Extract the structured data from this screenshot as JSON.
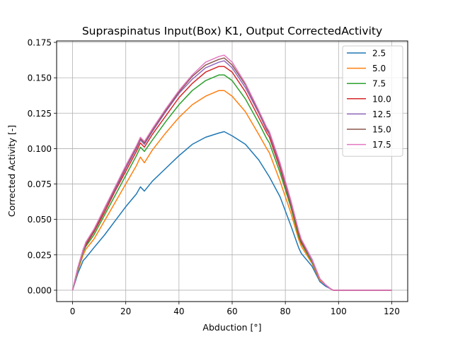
{
  "chart_data": {
    "type": "line",
    "title": "Supraspinatus Input(Box) K1, Output CorrectedActivity",
    "xlabel": "Abduction [°]",
    "ylabel": "Corrected Activity [-]",
    "xlim": [
      -6,
      126
    ],
    "ylim": [
      -0.008,
      0.176
    ],
    "xticks": [
      0,
      20,
      40,
      60,
      80,
      100,
      120
    ],
    "yticks": [
      0.0,
      0.025,
      0.05,
      0.075,
      0.1,
      0.125,
      0.15,
      0.175
    ],
    "ytick_labels": [
      "0.000",
      "0.025",
      "0.050",
      "0.075",
      "0.100",
      "0.125",
      "0.150",
      "0.175"
    ],
    "xtick_labels": [
      "0",
      "20",
      "40",
      "60",
      "80",
      "100",
      "120"
    ],
    "grid": true,
    "legend_position": "top-right",
    "x": [
      0,
      2,
      4,
      5,
      8,
      12,
      16,
      20,
      24,
      25.5,
      27,
      30,
      35,
      40,
      45,
      50,
      55,
      57,
      60,
      65,
      70,
      73,
      74,
      78,
      82,
      85,
      86,
      90,
      93,
      95,
      97,
      98,
      100,
      105,
      110,
      115,
      120
    ],
    "series": [
      {
        "name": "2.5",
        "color": "#1f77b4",
        "values": [
          0.0,
          0.012,
          0.021,
          0.023,
          0.03,
          0.039,
          0.049,
          0.059,
          0.068,
          0.073,
          0.07,
          0.077,
          0.086,
          0.095,
          0.103,
          0.108,
          0.111,
          0.112,
          0.109,
          0.103,
          0.092,
          0.083,
          0.08,
          0.066,
          0.046,
          0.03,
          0.026,
          0.017,
          0.006,
          0.003,
          0.001,
          0.0,
          0.0,
          0.0,
          0.0,
          0.0,
          0.0
        ]
      },
      {
        "name": "5.0",
        "color": "#ff7f0e",
        "values": [
          0.0,
          0.014,
          0.025,
          0.029,
          0.036,
          0.049,
          0.062,
          0.075,
          0.088,
          0.094,
          0.09,
          0.099,
          0.111,
          0.122,
          0.131,
          0.137,
          0.141,
          0.141,
          0.137,
          0.126,
          0.11,
          0.1,
          0.097,
          0.077,
          0.055,
          0.036,
          0.031,
          0.019,
          0.007,
          0.004,
          0.001,
          0.0,
          0.0,
          0.0,
          0.0,
          0.0,
          0.0
        ]
      },
      {
        "name": "7.5",
        "color": "#2ca02c",
        "values": [
          0.0,
          0.015,
          0.027,
          0.031,
          0.039,
          0.053,
          0.067,
          0.081,
          0.095,
          0.101,
          0.098,
          0.106,
          0.119,
          0.131,
          0.141,
          0.148,
          0.152,
          0.152,
          0.148,
          0.135,
          0.118,
          0.107,
          0.104,
          0.083,
          0.059,
          0.038,
          0.033,
          0.02,
          0.008,
          0.004,
          0.001,
          0.0,
          0.0,
          0.0,
          0.0,
          0.0,
          0.0
        ]
      },
      {
        "name": "10.0",
        "color": "#d62728",
        "values": [
          0.0,
          0.016,
          0.028,
          0.032,
          0.041,
          0.055,
          0.07,
          0.084,
          0.098,
          0.104,
          0.101,
          0.11,
          0.123,
          0.136,
          0.146,
          0.154,
          0.158,
          0.158,
          0.154,
          0.14,
          0.122,
          0.111,
          0.108,
          0.086,
          0.061,
          0.04,
          0.034,
          0.021,
          0.008,
          0.004,
          0.001,
          0.0,
          0.0,
          0.0,
          0.0,
          0.0,
          0.0
        ]
      },
      {
        "name": "12.5",
        "color": "#9467bd",
        "values": [
          0.0,
          0.016,
          0.028,
          0.033,
          0.042,
          0.057,
          0.071,
          0.086,
          0.1,
          0.106,
          0.103,
          0.112,
          0.126,
          0.139,
          0.149,
          0.157,
          0.161,
          0.162,
          0.157,
          0.143,
          0.125,
          0.113,
          0.11,
          0.088,
          0.062,
          0.041,
          0.035,
          0.021,
          0.008,
          0.004,
          0.001,
          0.0,
          0.0,
          0.0,
          0.0,
          0.0,
          0.0
        ]
      },
      {
        "name": "15.0",
        "color": "#8c564b",
        "values": [
          0.0,
          0.016,
          0.029,
          0.033,
          0.042,
          0.057,
          0.072,
          0.087,
          0.101,
          0.107,
          0.104,
          0.113,
          0.127,
          0.14,
          0.151,
          0.159,
          0.163,
          0.164,
          0.159,
          0.145,
          0.126,
          0.114,
          0.111,
          0.089,
          0.063,
          0.041,
          0.035,
          0.022,
          0.008,
          0.004,
          0.001,
          0.0,
          0.0,
          0.0,
          0.0,
          0.0,
          0.0
        ]
      },
      {
        "name": "17.5",
        "color": "#e377c2",
        "values": [
          0.0,
          0.016,
          0.029,
          0.034,
          0.043,
          0.058,
          0.073,
          0.088,
          0.102,
          0.108,
          0.105,
          0.114,
          0.128,
          0.141,
          0.152,
          0.161,
          0.165,
          0.166,
          0.161,
          0.146,
          0.127,
          0.115,
          0.112,
          0.09,
          0.064,
          0.042,
          0.036,
          0.022,
          0.008,
          0.004,
          0.001,
          0.0,
          0.0,
          0.0,
          0.0,
          0.0,
          0.0
        ]
      }
    ]
  }
}
